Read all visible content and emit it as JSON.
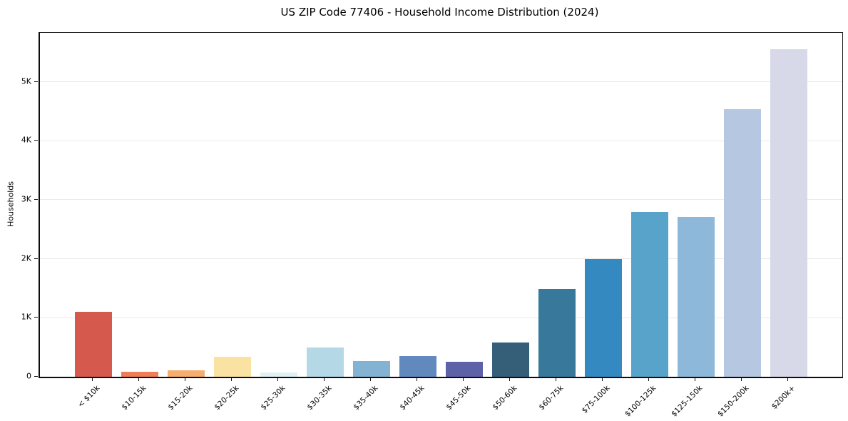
{
  "chart_data": {
    "type": "bar",
    "title": "US ZIP Code 77406 - Household Income Distribution (2024)",
    "xlabel": "",
    "ylabel": "Households",
    "categories": [
      "< $10k",
      "$10-15k",
      "$15-20k",
      "$20-25k",
      "$25-30k",
      "$30-35k",
      "$35-40k",
      "$40-45k",
      "$45-50k",
      "$50-60k",
      "$60-75k",
      "$75-100k",
      "$100-125k",
      "$125-150k",
      "$150-200k",
      "$200k+"
    ],
    "values": [
      1100,
      80,
      105,
      335,
      75,
      500,
      270,
      355,
      255,
      585,
      1490,
      2000,
      2790,
      2715,
      4535,
      5550
    ],
    "bar_colors": [
      "#d6594e",
      "#ef7e56",
      "#f5ae6e",
      "#fae3a2",
      "#e0f1f3",
      "#b5d8e6",
      "#84b2d3",
      "#6189be",
      "#5c61a8",
      "#355f78",
      "#37789b",
      "#3489c0",
      "#58a3c9",
      "#8eb8d9",
      "#b6c8e1",
      "#d8d9e8"
    ],
    "ylim": [
      0,
      5830
    ],
    "yticks": [
      {
        "value": 0,
        "label": "0"
      },
      {
        "value": 1000,
        "label": "1K"
      },
      {
        "value": 2000,
        "label": "2K"
      },
      {
        "value": 3000,
        "label": "3K"
      },
      {
        "value": 4000,
        "label": "4K"
      },
      {
        "value": 5000,
        "label": "5K"
      }
    ],
    "grid": "horizontal",
    "gridline_color": "#e9e9e9",
    "legend_position": "none"
  }
}
